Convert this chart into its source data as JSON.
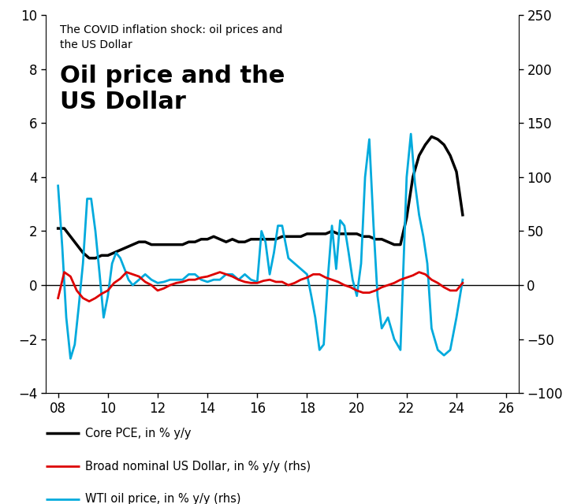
{
  "title_small": "The COVID inflation shock: oil prices and\nthe US Dollar",
  "title_large": "Oil price and the\nUS Dollar",
  "xlim": [
    7.5,
    26.5
  ],
  "ylim_left": [
    -4,
    10
  ],
  "ylim_right": [
    -100,
    250
  ],
  "xticks": [
    8,
    10,
    12,
    14,
    16,
    18,
    20,
    22,
    24,
    26
  ],
  "yticks_left": [
    -4,
    -2,
    0,
    2,
    4,
    6,
    8,
    10
  ],
  "yticks_right": [
    -100,
    -50,
    0,
    50,
    100,
    150,
    200,
    250
  ],
  "legend": [
    {
      "label": "Core PCE, in % y/y",
      "color": "#000000",
      "lw": 2.5
    },
    {
      "label": "Broad nominal US Dollar, in % y/y (rhs)",
      "color": "#dd0000",
      "lw": 2.0
    },
    {
      "label": "WTI oil price, in % y/y (rhs)",
      "color": "#00aadd",
      "lw": 2.0
    }
  ],
  "core_pce_x": [
    8.0,
    8.25,
    8.5,
    8.75,
    9.0,
    9.25,
    9.5,
    9.75,
    10.0,
    10.25,
    10.5,
    10.75,
    11.0,
    11.25,
    11.5,
    11.75,
    12.0,
    12.25,
    12.5,
    12.75,
    13.0,
    13.25,
    13.5,
    13.75,
    14.0,
    14.25,
    14.5,
    14.75,
    15.0,
    15.25,
    15.5,
    15.75,
    16.0,
    16.25,
    16.5,
    16.75,
    17.0,
    17.25,
    17.5,
    17.75,
    18.0,
    18.25,
    18.5,
    18.75,
    19.0,
    19.25,
    19.5,
    19.75,
    20.0,
    20.25,
    20.5,
    20.75,
    21.0,
    21.25,
    21.5,
    21.75,
    22.0,
    22.25,
    22.5,
    22.75,
    23.0,
    23.25,
    23.5,
    23.75,
    24.0,
    24.25
  ],
  "core_pce_y": [
    2.1,
    2.1,
    1.8,
    1.5,
    1.2,
    1.0,
    1.0,
    1.1,
    1.1,
    1.2,
    1.3,
    1.4,
    1.5,
    1.6,
    1.6,
    1.5,
    1.5,
    1.5,
    1.5,
    1.5,
    1.5,
    1.6,
    1.6,
    1.7,
    1.7,
    1.8,
    1.7,
    1.6,
    1.7,
    1.6,
    1.6,
    1.7,
    1.7,
    1.7,
    1.7,
    1.7,
    1.8,
    1.8,
    1.8,
    1.8,
    1.9,
    1.9,
    1.9,
    1.9,
    2.0,
    1.9,
    1.9,
    1.9,
    1.9,
    1.8,
    1.8,
    1.7,
    1.7,
    1.6,
    1.5,
    1.5,
    2.5,
    4.0,
    4.8,
    5.2,
    5.5,
    5.4,
    5.2,
    4.8,
    4.2,
    2.6
  ],
  "usd_x": [
    8.0,
    8.25,
    8.5,
    8.75,
    9.0,
    9.25,
    9.5,
    9.75,
    10.0,
    10.25,
    10.5,
    10.75,
    11.0,
    11.25,
    11.5,
    11.75,
    12.0,
    12.25,
    12.5,
    12.75,
    13.0,
    13.25,
    13.5,
    13.75,
    14.0,
    14.25,
    14.5,
    14.75,
    15.0,
    15.25,
    15.5,
    15.75,
    16.0,
    16.25,
    16.5,
    16.75,
    17.0,
    17.25,
    17.5,
    17.75,
    18.0,
    18.25,
    18.5,
    18.75,
    19.0,
    19.25,
    19.5,
    19.75,
    20.0,
    20.25,
    20.5,
    20.75,
    21.0,
    21.25,
    21.5,
    21.75,
    22.0,
    22.25,
    22.5,
    22.75,
    23.0,
    23.25,
    23.5,
    23.75,
    24.0,
    24.25
  ],
  "usd_y": [
    -12,
    12,
    8,
    -5,
    -12,
    -15,
    -12,
    -8,
    -5,
    2,
    6,
    12,
    10,
    8,
    3,
    0,
    -5,
    -3,
    0,
    2,
    3,
    5,
    5,
    7,
    8,
    10,
    12,
    10,
    8,
    5,
    3,
    2,
    2,
    4,
    5,
    3,
    3,
    0,
    2,
    5,
    7,
    10,
    10,
    7,
    5,
    3,
    0,
    -2,
    -5,
    -7,
    -7,
    -5,
    -2,
    0,
    2,
    5,
    7,
    9,
    12,
    10,
    5,
    2,
    -2,
    -5,
    -5,
    2
  ],
  "wti_x": [
    8.0,
    8.17,
    8.33,
    8.5,
    8.67,
    8.83,
    9.0,
    9.17,
    9.33,
    9.5,
    9.67,
    9.83,
    10.0,
    10.17,
    10.33,
    10.5,
    10.67,
    10.83,
    11.0,
    11.25,
    11.5,
    11.75,
    12.0,
    12.25,
    12.5,
    12.75,
    13.0,
    13.25,
    13.5,
    13.75,
    14.0,
    14.25,
    14.5,
    14.75,
    15.0,
    15.25,
    15.5,
    15.75,
    16.0,
    16.17,
    16.33,
    16.5,
    16.67,
    16.83,
    17.0,
    17.25,
    17.5,
    17.75,
    18.0,
    18.17,
    18.33,
    18.5,
    18.67,
    18.83,
    19.0,
    19.17,
    19.33,
    19.5,
    19.67,
    19.83,
    20.0,
    20.17,
    20.33,
    20.5,
    20.67,
    20.83,
    21.0,
    21.25,
    21.5,
    21.75,
    22.0,
    22.17,
    22.33,
    22.5,
    22.67,
    22.83,
    23.0,
    23.25,
    23.5,
    23.75,
    24.0,
    24.25
  ],
  "wti_y": [
    92,
    35,
    -30,
    -68,
    -55,
    -20,
    20,
    80,
    80,
    50,
    10,
    -30,
    -10,
    20,
    30,
    25,
    15,
    5,
    0,
    5,
    10,
    5,
    2,
    3,
    5,
    5,
    5,
    10,
    10,
    5,
    3,
    5,
    5,
    10,
    10,
    5,
    10,
    5,
    3,
    50,
    40,
    10,
    30,
    55,
    55,
    25,
    20,
    15,
    10,
    -10,
    -30,
    -60,
    -55,
    5,
    55,
    15,
    60,
    55,
    30,
    5,
    -10,
    20,
    100,
    135,
    55,
    -10,
    -40,
    -30,
    -50,
    -60,
    100,
    140,
    95,
    65,
    45,
    20,
    -40,
    -60,
    -65,
    -60,
    -30,
    5
  ]
}
